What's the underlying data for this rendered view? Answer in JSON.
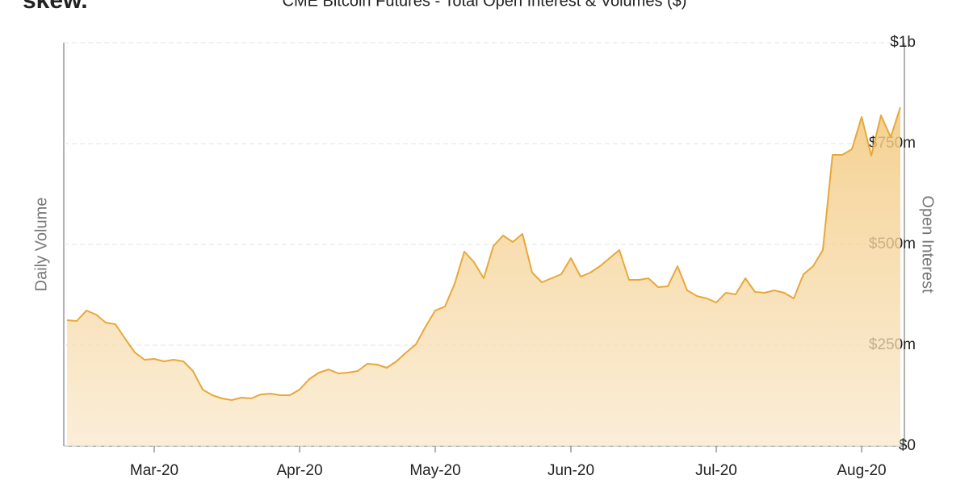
{
  "logo": "skew.",
  "chart_data": {
    "type": "area",
    "title": "CME Bitcoin Futures - Total Open Interest & Volumes ($)",
    "y_label_left": "Daily Volume",
    "y_label_right": "Open Interest",
    "categories": [
      null,
      null,
      null,
      null,
      null,
      null,
      null,
      null,
      null,
      "Mar-20",
      null,
      null,
      null,
      null,
      null,
      null,
      null,
      null,
      null,
      null,
      null,
      null,
      null,
      null,
      "Apr-20",
      null,
      null,
      null,
      null,
      null,
      null,
      null,
      null,
      null,
      null,
      null,
      null,
      null,
      "May-20",
      null,
      null,
      null,
      null,
      null,
      null,
      null,
      null,
      null,
      null,
      null,
      null,
      null,
      "Jun-20",
      null,
      null,
      null,
      null,
      null,
      null,
      null,
      null,
      null,
      null,
      null,
      null,
      null,
      null,
      "Jul-20",
      null,
      null,
      null,
      null,
      null,
      null,
      null,
      null,
      null,
      null,
      null,
      null,
      null,
      null,
      "Aug-20",
      null,
      null,
      null,
      null
    ],
    "series": [
      {
        "name": "Open Interest",
        "color": "#e8a838",
        "values": [
          312000000,
          310000000,
          336000000,
          326000000,
          306000000,
          302000000,
          266000000,
          232000000,
          214000000,
          216000000,
          210000000,
          214000000,
          210000000,
          186000000,
          140000000,
          126000000,
          118000000,
          114000000,
          120000000,
          118000000,
          128000000,
          130000000,
          126000000,
          126000000,
          140000000,
          166000000,
          182000000,
          190000000,
          180000000,
          182000000,
          186000000,
          204000000,
          202000000,
          194000000,
          210000000,
          232000000,
          252000000,
          296000000,
          336000000,
          346000000,
          402000000,
          482000000,
          456000000,
          416000000,
          496000000,
          522000000,
          506000000,
          526000000,
          430000000,
          406000000,
          416000000,
          426000000,
          466000000,
          420000000,
          430000000,
          446000000,
          466000000,
          486000000,
          412000000,
          412000000,
          416000000,
          394000000,
          396000000,
          446000000,
          386000000,
          372000000,
          366000000,
          356000000,
          380000000,
          376000000,
          416000000,
          382000000,
          380000000,
          386000000,
          380000000,
          366000000,
          426000000,
          446000000,
          486000000,
          722000000,
          722000000,
          736000000,
          816000000,
          720000000,
          820000000,
          766000000,
          840000000
        ]
      }
    ],
    "ylim": [
      0,
      1000000000
    ],
    "yticks": [
      {
        "value": 0,
        "label": "$0"
      },
      {
        "value": 250000000,
        "label": "$250m"
      },
      {
        "value": 500000000,
        "label": "$500m"
      },
      {
        "value": 750000000,
        "label": "$750m"
      },
      {
        "value": 1000000000,
        "label": "$1b"
      }
    ],
    "grid": true
  }
}
